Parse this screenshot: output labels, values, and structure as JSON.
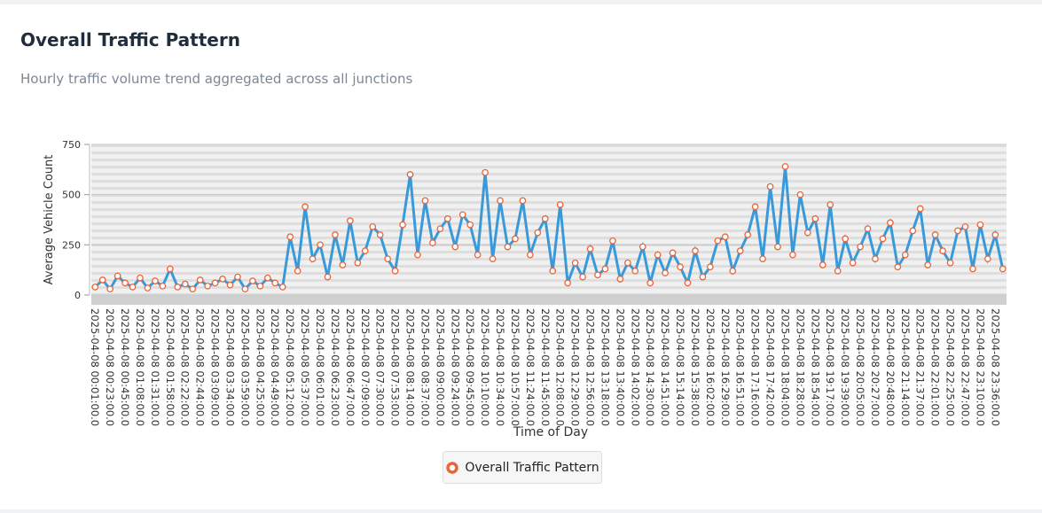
{
  "chart_data": {
    "type": "line",
    "title": "Overall Traffic Pattern",
    "subtitle": "Hourly traffic volume trend aggregated across all junctions",
    "x_label": "Time of Day",
    "y_label": "Average Vehicle Count",
    "categories": [
      "2025-04-08 00:01:00.0",
      null,
      "2025-04-08 00:23:00.0",
      null,
      "2025-04-08 00:45:00.0",
      null,
      "2025-04-08 01:08:00.0",
      null,
      "2025-04-08 01:31:00.0",
      null,
      "2025-04-08 01:58:00.0",
      null,
      "2025-04-08 02:22:00.0",
      null,
      "2025-04-08 02:44:00.0",
      null,
      "2025-04-08 03:09:00.0",
      null,
      "2025-04-08 03:34:00.0",
      null,
      "2025-04-08 03:59:00.0",
      null,
      "2025-04-08 04:25:00.0",
      null,
      "2025-04-08 04:49:00.0",
      null,
      "2025-04-08 05:12:00.0",
      null,
      "2025-04-08 05:37:00.0",
      null,
      "2025-04-08 06:01:00.0",
      null,
      "2025-04-08 06:23:00.0",
      null,
      "2025-04-08 06:47:00.0",
      null,
      "2025-04-08 07:09:00.0",
      null,
      "2025-04-08 07:30:00.0",
      null,
      "2025-04-08 07:53:00.0",
      null,
      "2025-04-08 08:14:00.0",
      null,
      "2025-04-08 08:37:00.0",
      null,
      "2025-04-08 09:00:00.0",
      null,
      "2025-04-08 09:24:00.0",
      null,
      "2025-04-08 09:45:00.0",
      null,
      "2025-04-08 10:10:00.0",
      null,
      "2025-04-08 10:34:00.0",
      null,
      "2025-04-08 10:57:00.0",
      null,
      "2025-04-08 11:24:00.0",
      null,
      "2025-04-08 11:45:00.0",
      null,
      "2025-04-08 12:08:00.0",
      null,
      "2025-04-08 12:29:00.0",
      null,
      "2025-04-08 12:56:00.0",
      null,
      "2025-04-08 13:18:00.0",
      null,
      "2025-04-08 13:40:00.0",
      null,
      "2025-04-08 14:02:00.0",
      null,
      "2025-04-08 14:30:00.0",
      null,
      "2025-04-08 14:51:00.0",
      null,
      "2025-04-08 15:14:00.0",
      null,
      "2025-04-08 15:38:00.0",
      null,
      "2025-04-08 16:02:00.0",
      null,
      "2025-04-08 16:29:00.0",
      null,
      "2025-04-08 16:51:00.0",
      null,
      "2025-04-08 17:16:00.0",
      null,
      "2025-04-08 17:42:00.0",
      null,
      "2025-04-08 18:04:00.0",
      null,
      "2025-04-08 18:28:00.0",
      null,
      "2025-04-08 18:54:00.0",
      null,
      "2025-04-08 19:17:00.0",
      null,
      "2025-04-08 19:39:00.0",
      null,
      "2025-04-08 20:05:00.0",
      null,
      "2025-04-08 20:27:00.0",
      null,
      "2025-04-08 20:48:00.0",
      null,
      "2025-04-08 21:14:00.0",
      null,
      "2025-04-08 21:37:00.0",
      null,
      "2025-04-08 22:01:00.0",
      null,
      "2025-04-08 22:25:00.0",
      null,
      "2025-04-08 22:47:00.0",
      null,
      "2025-04-08 23:10:00.0",
      null,
      "2025-04-08 23:36:00.0",
      null
    ],
    "series": [
      {
        "name": "Overall Traffic Pattern",
        "color": "#3a9ad9",
        "marker_color": "#e8643a",
        "values": [
          40,
          75,
          30,
          95,
          60,
          40,
          85,
          35,
          70,
          45,
          130,
          40,
          55,
          30,
          75,
          45,
          60,
          80,
          50,
          90,
          30,
          70,
          45,
          85,
          60,
          40,
          290,
          120,
          440,
          180,
          250,
          90,
          300,
          150,
          370,
          160,
          220,
          340,
          300,
          180,
          120,
          350,
          600,
          200,
          470,
          260,
          330,
          380,
          240,
          400,
          350,
          200,
          610,
          180,
          470,
          240,
          280,
          470,
          200,
          310,
          380,
          120,
          450,
          60,
          160,
          90,
          230,
          100,
          130,
          270,
          80,
          160,
          120,
          240,
          60,
          200,
          110,
          210,
          140,
          60,
          220,
          90,
          140,
          270,
          290,
          120,
          220,
          300,
          440,
          180,
          540,
          240,
          640,
          200,
          500,
          310,
          380,
          150,
          450,
          120,
          280,
          160,
          240,
          330,
          180,
          280,
          360,
          140,
          200,
          320,
          430,
          150,
          300,
          220,
          160,
          320,
          340,
          130,
          350,
          180,
          300,
          130
        ]
      }
    ],
    "ylim": [
      0,
      750
    ],
    "yticks": [
      0,
      250,
      500,
      750
    ],
    "grid": true
  }
}
